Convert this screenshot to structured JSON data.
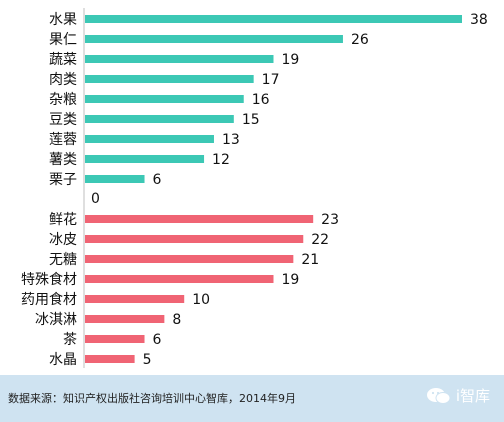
{
  "chart_data": {
    "type": "bar",
    "orientation": "horizontal",
    "series": [
      {
        "color": "#3cc8b5",
        "categories": [
          "水果",
          "果仁",
          "蔬菜",
          "肉类",
          "杂粮",
          "豆类",
          "莲蓉",
          "薯类",
          "栗子"
        ],
        "values": [
          38,
          26,
          19,
          17,
          16,
          15,
          13,
          12,
          6
        ]
      },
      {
        "color": "#f06474",
        "categories": [
          "鲜花",
          "冰皮",
          "无糖",
          "特殊食材",
          "药用食材",
          "冰淇淋",
          "茶",
          "水晶"
        ],
        "values": [
          23,
          22,
          21,
          19,
          10,
          8,
          6,
          5
        ]
      }
    ],
    "gap_value": "0",
    "xlim": [
      0,
      38
    ]
  },
  "footer": {
    "source": "数据来源：知识产权出版社咨询培训中心智库，2014年9月",
    "brand": "i智库"
  }
}
